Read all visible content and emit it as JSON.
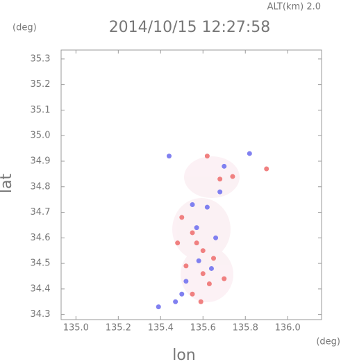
{
  "chart_data": {
    "type": "scatter",
    "title": "2014/10/15 12:27:58",
    "subtitle": "ALT(km) 2.0",
    "y_unit": "(deg)",
    "x_unit": "(deg)",
    "x_label": "lon",
    "y_label": "lat",
    "xlim": [
      134.93,
      136.16
    ],
    "ylim": [
      34.28,
      35.335
    ],
    "xticks": [
      {
        "value": 135.0,
        "label": "135.0"
      },
      135.2,
      135.4,
      135.6,
      135.8,
      {
        "value": 136.0,
        "label": "136.0"
      }
    ],
    "yticks": [
      34.3,
      34.4,
      34.5,
      34.6,
      34.7,
      34.8,
      34.9,
      {
        "value": 35.0,
        "label": "35.0"
      },
      35.1,
      35.2,
      35.3
    ],
    "grid": false,
    "series": [
      {
        "color": "#f08080",
        "x": [
          135.62,
          135.9,
          135.68,
          135.5,
          135.55,
          135.57,
          135.6,
          135.52,
          135.6,
          135.63,
          135.55,
          135.59,
          135.7,
          135.74,
          135.48,
          135.65
        ],
        "values": [
          34.92,
          34.87,
          34.83,
          34.68,
          34.62,
          34.58,
          34.55,
          34.49,
          34.46,
          34.42,
          34.38,
          34.35,
          34.44,
          34.84,
          34.58,
          34.52
        ]
      },
      {
        "color": "#8080f0",
        "x": [
          135.39,
          135.47,
          135.62,
          135.55,
          135.66,
          135.68,
          135.57,
          135.52,
          135.64,
          135.82,
          135.44,
          135.7,
          135.58,
          135.5
        ],
        "values": [
          34.33,
          34.35,
          34.72,
          34.73,
          34.6,
          34.78,
          34.64,
          34.43,
          34.48,
          34.93,
          34.92,
          34.88,
          34.51,
          34.38
        ]
      }
    ]
  }
}
